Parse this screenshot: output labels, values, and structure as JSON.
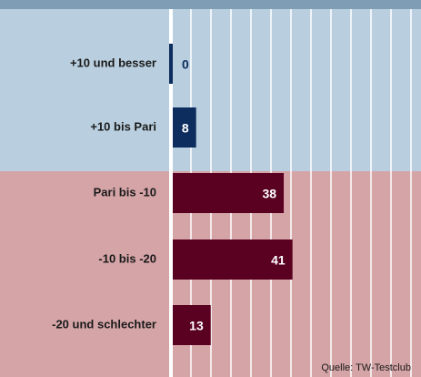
{
  "chart_data": {
    "type": "barh",
    "categories": [
      "+10 und besser",
      "+10 bis Pari",
      "Pari bis -10",
      "-10 bis -20",
      "-20 und schlechter"
    ],
    "values": [
      0,
      8,
      38,
      41,
      13
    ],
    "colors": [
      "#0c2d5e",
      "#0c2d5e",
      "#5a0020",
      "#5a0020",
      "#5a0020"
    ],
    "xlim": [
      0,
      85
    ],
    "source": "Quelle: TW-Testclub"
  }
}
